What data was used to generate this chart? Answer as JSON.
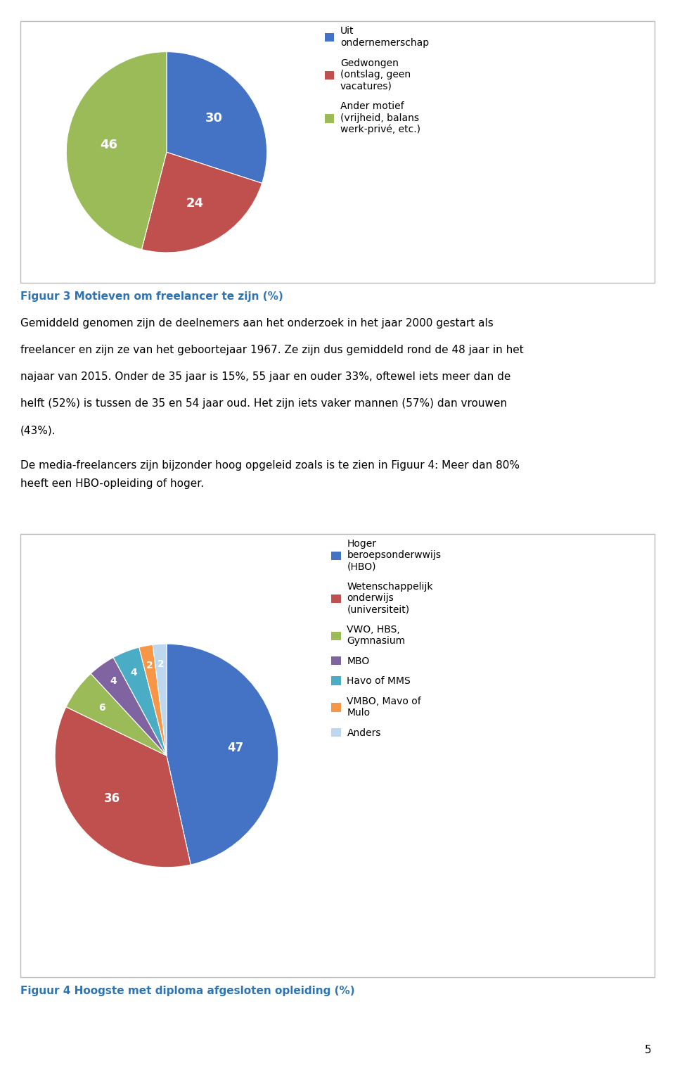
{
  "pie1_values": [
    30,
    24,
    46
  ],
  "pie1_colors": [
    "#4472C4",
    "#C0504D",
    "#9BBB59"
  ],
  "pie1_labels": [
    "30",
    "24",
    "46"
  ],
  "pie1_legend": [
    "Uit\nondernemerschap",
    "Gedwongen\n(ontslag, geen\nvacatures)",
    "Ander motief\n(vrijheid, balans\nwerk-privé, etc.)"
  ],
  "fig3_caption": "Figuur 3 Motieven om freelancer te zijn (%)",
  "body_lines": [
    "Gemiddeld genomen zijn de deelnemers aan het onderzoek in het jaar 2000 gestart als",
    "freelancer en zijn ze van het geboortejaar 1967. Ze zijn dus gemiddeld rond de 48 jaar in het",
    "najaar van 2015. Onder de 35 jaar is 15%, 55 jaar en ouder 33%, oftewel iets meer dan de",
    "helft (52%) is tussen de 35 en 54 jaar oud. Het zijn iets vaker mannen (57%) dan vrouwen",
    "(43%).",
    "De media-freelancers zijn bijzonder hoog opgeleid zoals is te zien in Figuur 4: Meer dan 80%",
    "heeft een HBO-opleiding of hoger."
  ],
  "pie2_values": [
    47,
    36,
    6,
    4,
    4,
    2,
    2
  ],
  "pie2_colors": [
    "#4472C4",
    "#C0504D",
    "#9BBB59",
    "#8064A2",
    "#4BACC6",
    "#F79646",
    "#BDD7EE"
  ],
  "pie2_labels": [
    "47",
    "36",
    "6",
    "4",
    "4",
    "2",
    "2"
  ],
  "pie2_legend": [
    "Hoger\nberoepsonderwwijs\n(HBO)",
    "Wetenschappelijk\nonderwijs\n(universiteit)",
    "VWO, HBS,\nGymnasium",
    "MBO",
    "Havo of MMS",
    "VMBO, Mavo of\nMulo",
    "Anders"
  ],
  "fig4_caption": "Figuur 4 Hoogste met diploma afgesloten opleiding (%)",
  "page_number": "5",
  "caption_color": "#2E74B5",
  "background_color": "#FFFFFF"
}
